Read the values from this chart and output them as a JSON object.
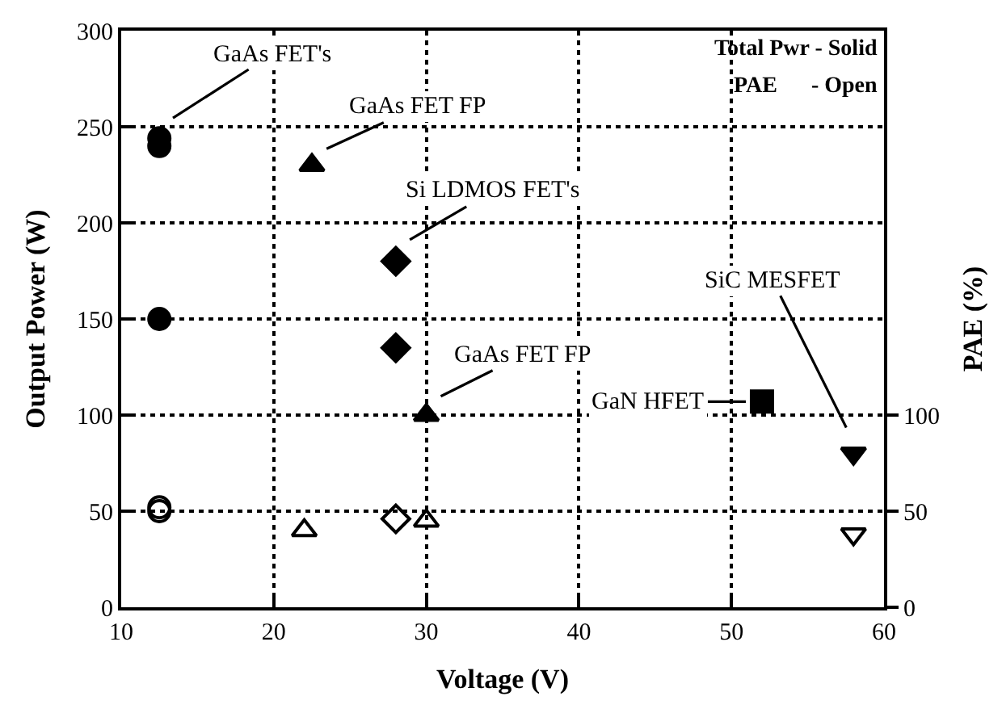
{
  "chart_data": {
    "type": "scatter",
    "xlabel": "Voltage (V)",
    "ylabel": "Output Power (W)",
    "y2label": "PAE (%)",
    "xlim": [
      10,
      60
    ],
    "xticks": [
      10,
      20,
      30,
      40,
      50,
      60
    ],
    "ylim": [
      0,
      300
    ],
    "yticks": [
      0,
      50,
      100,
      150,
      200,
      250,
      300
    ],
    "y2lim": [
      0,
      300
    ],
    "y2ticks": [
      0,
      50,
      100
    ],
    "grid": true,
    "series": [
      {
        "color": "#000000",
        "marker": "circle",
        "x": [
          12.5,
          12.5,
          12.5
        ],
        "values": [
          244,
          240,
          150
        ]
      },
      {
        "color": "#000000",
        "marker": "circle",
        "axis": "y2",
        "x": [
          12.5,
          12.5
        ],
        "values": [
          52,
          50
        ]
      },
      {
        "color": "#000000",
        "marker": "triangle",
        "x": [
          22.5,
          30
        ],
        "values": [
          230,
          100
        ]
      },
      {
        "color": "#000000",
        "marker": "triangle",
        "axis": "y2",
        "x": [
          22,
          30
        ],
        "values": [
          40,
          45
        ]
      },
      {
        "color": "#000000",
        "marker": "diamond",
        "x": [
          28,
          28
        ],
        "values": [
          180,
          135
        ]
      },
      {
        "color": "#000000",
        "marker": "diamond",
        "axis": "y2",
        "x": [
          28
        ],
        "values": [
          46
        ]
      },
      {
        "color": "#000000",
        "marker": "square",
        "x": [
          52
        ],
        "values": [
          107
        ]
      },
      {
        "color": "#000000",
        "marker": "triangle-down",
        "x": [
          58
        ],
        "values": [
          80
        ]
      },
      {
        "color": "#000000",
        "marker": "triangle-down",
        "axis": "y2",
        "x": [
          58
        ],
        "values": [
          38
        ]
      }
    ],
    "annotations": [
      {
        "text": "GaAs FET's",
        "x": 12.5,
        "y": 250
      },
      {
        "text": "GaAs FET FP",
        "x": 22.5,
        "y": 235
      },
      {
        "text": "Si LDMOS FET's",
        "x": 28,
        "y": 187
      },
      {
        "text": "GaAs FET FP",
        "x": 30,
        "y": 106
      },
      {
        "text": "GaN HFET",
        "x": 52,
        "y": 107
      },
      {
        "text": "SiC MESFET",
        "x": 58,
        "y": 86
      },
      "Total Pwr - Solid",
      "PAE      - Open"
    ]
  }
}
